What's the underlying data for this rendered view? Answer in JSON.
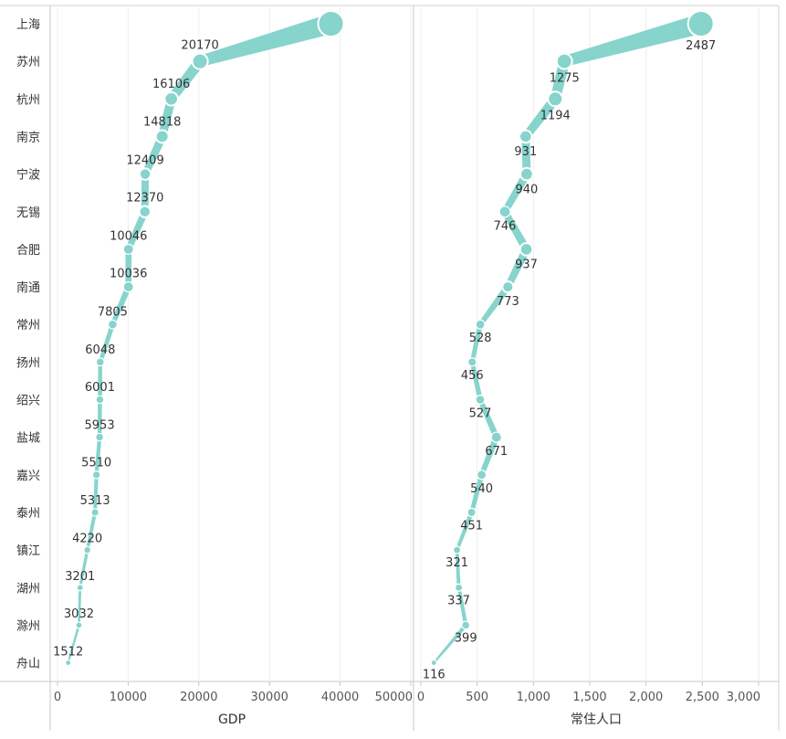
{
  "chart_data": {
    "type": "line",
    "categories": [
      "上海",
      "苏州",
      "杭州",
      "南京",
      "宁波",
      "无锡",
      "合肥",
      "南通",
      "常州",
      "扬州",
      "绍兴",
      "盐城",
      "嘉兴",
      "泰州",
      "镇江",
      "湖州",
      "滁州",
      "舟山"
    ],
    "panels": [
      {
        "xlabel": "GDP",
        "xlim": [
          0,
          50000
        ],
        "ticks": [
          0,
          10000,
          20000,
          30000,
          40000,
          50000
        ],
        "tick_labels": [
          "0",
          "10000",
          "20000",
          "30000",
          "40000",
          "50000"
        ],
        "values": [
          38700,
          20170,
          16106,
          14818,
          12409,
          12370,
          10046,
          10036,
          7805,
          6048,
          6001,
          5953,
          5510,
          5313,
          4220,
          3201,
          3032,
          1512
        ],
        "data_labels": [
          "",
          "20170",
          "16106",
          "14818",
          "12409",
          "12370",
          "10046",
          "10036",
          "7805",
          "6048",
          "6001",
          "5953",
          "5510",
          "5313",
          "4220",
          "3201",
          "3032",
          "1512"
        ],
        "label_side": "above"
      },
      {
        "xlabel": "常住人口",
        "xlim": [
          0,
          3000
        ],
        "ticks": [
          0,
          500,
          1000,
          1500,
          2000,
          2500,
          3000
        ],
        "tick_labels": [
          "0",
          "500",
          "1,000",
          "1,500",
          "2,000",
          "2,500",
          "3,000"
        ],
        "values": [
          2487,
          1275,
          1194,
          931,
          940,
          746,
          937,
          773,
          528,
          456,
          527,
          671,
          540,
          451,
          321,
          337,
          399,
          116
        ],
        "data_labels": [
          "2487",
          "1275",
          "1194",
          "931",
          "940",
          "746",
          "937",
          "773",
          "528",
          "456",
          "527",
          "671",
          "540",
          "451",
          "321",
          "337",
          "399",
          "116"
        ],
        "label_side": "below"
      }
    ],
    "series_color": "#86D4CC",
    "grid": true,
    "legend": "none"
  }
}
